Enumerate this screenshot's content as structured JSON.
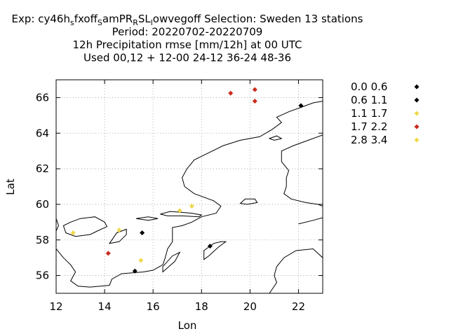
{
  "chart_data": {
    "type": "scatter",
    "title_lines": [
      {
        "parts": [
          {
            "t": "Exp: cy46h"
          },
          {
            "t": "s",
            "sub": true
          },
          {
            "t": "fxoff"
          },
          {
            "t": "S",
            "sub": true
          },
          {
            "t": "amPR"
          },
          {
            "t": "R",
            "sub": true
          },
          {
            "t": "SL"
          },
          {
            "t": "l",
            "sub": true
          },
          {
            "t": "owvegoff   Selection: Sweden     13 stations"
          }
        ]
      },
      {
        "text": "Period: 20220702-20220709"
      },
      {
        "text": "12h Precipitation rmse [mm/12h] at  00 UTC"
      },
      {
        "text": "Used  00,12  + 12-00 24-12 36-24 48-36"
      }
    ],
    "xlabel": "Lon",
    "ylabel": "Lat",
    "xlim": [
      12,
      23
    ],
    "ylim": [
      55,
      67
    ],
    "xticks": [
      "12",
      "14",
      "16",
      "18",
      "20",
      "22"
    ],
    "yticks": [
      "56",
      "58",
      "60",
      "62",
      "64",
      "66"
    ],
    "grid": true,
    "legend_position": "right",
    "legend": [
      {
        "label": "0.0 0.6",
        "color": "#000000"
      },
      {
        "label": "0.6 1.1",
        "color": "#000000"
      },
      {
        "label": "1.1 1.7",
        "color": "#f0d84a"
      },
      {
        "label": "1.7 2.2",
        "color": "#cc2a1e"
      },
      {
        "label": "2.8 3.4",
        "color": "#f0d84a"
      }
    ],
    "points": [
      {
        "lon": 19.2,
        "lat": 66.25,
        "class": 3
      },
      {
        "lon": 20.2,
        "lat": 66.45,
        "class": 3
      },
      {
        "lon": 20.2,
        "lat": 65.8,
        "class": 3
      },
      {
        "lon": 22.1,
        "lat": 65.55,
        "class": 0
      },
      {
        "lon": 17.1,
        "lat": 59.65,
        "class": 2
      },
      {
        "lon": 17.6,
        "lat": 59.9,
        "class": 2
      },
      {
        "lon": 12.7,
        "lat": 58.4,
        "class": 2
      },
      {
        "lon": 14.6,
        "lat": 58.55,
        "class": 2
      },
      {
        "lon": 15.55,
        "lat": 58.4,
        "class": 1
      },
      {
        "lon": 18.35,
        "lat": 57.65,
        "class": 1
      },
      {
        "lon": 14.15,
        "lat": 57.25,
        "class": 3
      },
      {
        "lon": 15.5,
        "lat": 56.85,
        "class": 2
      },
      {
        "lon": 15.25,
        "lat": 56.25,
        "class": 0
      }
    ]
  },
  "map_outline": {
    "coast_sweden": [
      [
        12.0,
        57.5
      ],
      [
        12.3,
        57.0
      ],
      [
        12.6,
        56.6
      ],
      [
        12.8,
        56.2
      ],
      [
        12.6,
        55.7
      ],
      [
        12.9,
        55.4
      ],
      [
        13.4,
        55.35
      ],
      [
        14.2,
        55.45
      ],
      [
        14.3,
        55.8
      ],
      [
        14.7,
        56.1
      ],
      [
        15.6,
        56.2
      ],
      [
        16.0,
        56.3
      ],
      [
        16.4,
        56.6
      ],
      [
        16.5,
        57.0
      ],
      [
        16.6,
        57.5
      ],
      [
        16.8,
        57.9
      ],
      [
        16.8,
        58.3
      ],
      [
        16.8,
        58.7
      ],
      [
        17.2,
        58.8
      ],
      [
        17.6,
        59.0
      ],
      [
        18.0,
        59.3
      ],
      [
        18.6,
        59.5
      ],
      [
        18.8,
        59.9
      ],
      [
        18.5,
        60.2
      ],
      [
        17.7,
        60.6
      ],
      [
        17.3,
        61.0
      ],
      [
        17.2,
        61.5
      ],
      [
        17.4,
        62.0
      ],
      [
        17.7,
        62.5
      ],
      [
        18.3,
        62.9
      ],
      [
        18.9,
        63.3
      ],
      [
        19.6,
        63.6
      ],
      [
        20.4,
        63.8
      ],
      [
        20.9,
        64.2
      ],
      [
        21.3,
        64.6
      ],
      [
        21.1,
        64.9
      ],
      [
        21.6,
        65.2
      ],
      [
        22.2,
        65.5
      ],
      [
        22.6,
        65.7
      ],
      [
        23.0,
        65.8
      ]
    ],
    "coast_finland": [
      [
        23.0,
        63.9
      ],
      [
        22.4,
        63.6
      ],
      [
        21.8,
        63.3
      ],
      [
        21.3,
        63.0
      ],
      [
        21.3,
        62.4
      ],
      [
        21.6,
        61.9
      ],
      [
        21.5,
        61.5
      ],
      [
        21.5,
        61.0
      ],
      [
        21.4,
        60.6
      ],
      [
        21.7,
        60.3
      ],
      [
        22.3,
        60.1
      ],
      [
        22.8,
        60.0
      ],
      [
        23.0,
        59.9
      ]
    ],
    "coast_estonia": [
      [
        23.0,
        59.25
      ],
      [
        22.6,
        59.1
      ],
      [
        22.0,
        58.9
      ]
    ],
    "coast_latvia": [
      [
        23.0,
        57.0
      ],
      [
        22.6,
        57.5
      ],
      [
        21.9,
        57.4
      ],
      [
        21.4,
        57.0
      ],
      [
        21.1,
        56.5
      ],
      [
        21.0,
        56.0
      ],
      [
        21.1,
        55.6
      ],
      [
        20.9,
        55.2
      ],
      [
        20.8,
        55.0
      ]
    ],
    "coast_norway": [
      [
        12.0,
        59.2
      ],
      [
        12.1,
        58.8
      ],
      [
        12.0,
        58.5
      ]
    ],
    "vanern": [
      [
        12.4,
        58.4
      ],
      [
        12.8,
        58.2
      ],
      [
        13.4,
        58.3
      ],
      [
        13.7,
        58.5
      ],
      [
        14.1,
        58.75
      ],
      [
        14.0,
        59.0
      ],
      [
        13.6,
        59.3
      ],
      [
        13.0,
        59.2
      ],
      [
        12.6,
        59.0
      ],
      [
        12.3,
        58.8
      ],
      [
        12.4,
        58.4
      ]
    ],
    "vattern": [
      [
        14.2,
        57.8
      ],
      [
        14.6,
        57.9
      ],
      [
        14.9,
        58.3
      ],
      [
        14.9,
        58.6
      ],
      [
        14.5,
        58.4
      ],
      [
        14.2,
        57.8
      ]
    ],
    "malaren": [
      [
        16.3,
        59.45
      ],
      [
        16.7,
        59.6
      ],
      [
        17.2,
        59.55
      ],
      [
        17.6,
        59.5
      ],
      [
        18.0,
        59.4
      ],
      [
        17.9,
        59.3
      ],
      [
        17.2,
        59.35
      ],
      [
        16.6,
        59.35
      ],
      [
        16.3,
        59.45
      ]
    ],
    "hjalmaren": [
      [
        15.3,
        59.2
      ],
      [
        15.8,
        59.3
      ],
      [
        16.2,
        59.2
      ],
      [
        15.8,
        59.1
      ],
      [
        15.3,
        59.2
      ]
    ],
    "gotland": [
      [
        18.1,
        56.9
      ],
      [
        18.3,
        57.1
      ],
      [
        18.7,
        57.6
      ],
      [
        19.0,
        57.9
      ],
      [
        18.8,
        57.9
      ],
      [
        18.5,
        57.8
      ],
      [
        18.1,
        57.4
      ],
      [
        18.1,
        56.9
      ]
    ],
    "oland": [
      [
        16.4,
        56.2
      ],
      [
        16.9,
        56.8
      ],
      [
        17.1,
        57.3
      ],
      [
        16.8,
        57.1
      ],
      [
        16.4,
        56.5
      ],
      [
        16.4,
        56.2
      ]
    ],
    "aland": [
      [
        19.6,
        60.05
      ],
      [
        19.8,
        60.3
      ],
      [
        20.2,
        60.3
      ],
      [
        20.3,
        60.1
      ],
      [
        19.9,
        60.0
      ],
      [
        19.6,
        60.05
      ]
    ],
    "kvarken": [
      [
        20.8,
        63.7
      ],
      [
        21.1,
        63.85
      ],
      [
        21.3,
        63.7
      ],
      [
        21.0,
        63.6
      ],
      [
        20.8,
        63.7
      ]
    ]
  }
}
